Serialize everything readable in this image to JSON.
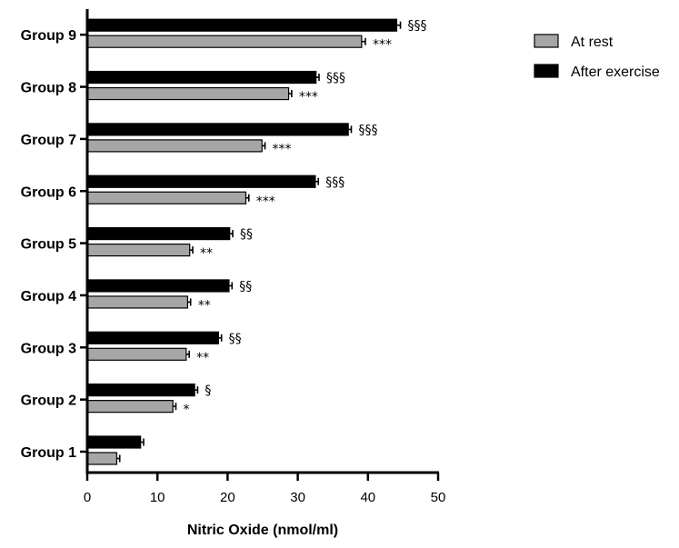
{
  "chart_data": {
    "type": "bar",
    "orientation": "horizontal",
    "xlabel": "Nitric Oxide (nmol/ml)",
    "xlim": [
      0,
      50
    ],
    "xticks": [
      0,
      10,
      20,
      30,
      40,
      50
    ],
    "categories": [
      "Group 1",
      "Group 2",
      "Group 3",
      "Group 4",
      "Group 5",
      "Group 6",
      "Group 7",
      "Group 8",
      "Group 9"
    ],
    "series": [
      {
        "name": "At rest",
        "color": "#a6a6a6",
        "values": [
          4.2,
          12.2,
          14.1,
          14.3,
          14.6,
          22.6,
          24.9,
          28.7,
          39.1
        ],
        "errors": [
          0.3,
          0.3,
          0.3,
          0.3,
          0.3,
          0.3,
          0.3,
          0.3,
          0.4
        ],
        "annotations": [
          "",
          "*",
          "**",
          "**",
          "**",
          "***",
          "***",
          "***",
          "***"
        ]
      },
      {
        "name": "After exercise",
        "color": "#000000",
        "values": [
          7.6,
          15.3,
          18.7,
          20.2,
          20.3,
          32.5,
          37.2,
          32.6,
          44.1
        ],
        "errors": [
          0.3,
          0.3,
          0.3,
          0.3,
          0.3,
          0.3,
          0.3,
          0.3,
          0.4
        ],
        "annotations": [
          "",
          "§",
          "§§",
          "§§",
          "§§",
          "§§§",
          "§§§",
          "§§§",
          "§§§"
        ]
      }
    ],
    "legend": "top-right",
    "grid": false
  }
}
